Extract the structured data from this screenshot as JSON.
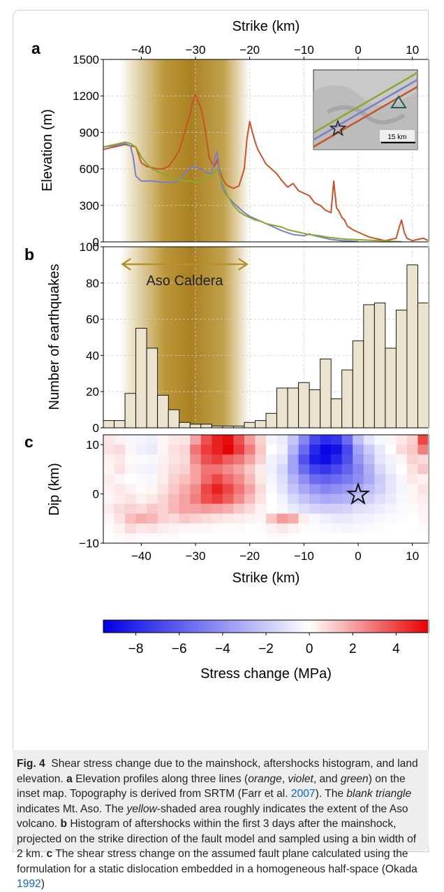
{
  "figure": {
    "panel_letters": [
      "a",
      "b",
      "c"
    ],
    "overlay_label": "Aso Caldera",
    "inset_scale_label": "15 km",
    "colorbar": {
      "label": "Stress change (MPa)",
      "ticks": [
        "−8",
        "−6",
        "−4",
        "−2",
        "0",
        "2",
        "4"
      ],
      "tick_values": [
        -8,
        -6,
        -4,
        -2,
        0,
        2,
        4
      ],
      "range": [
        -9.5,
        5.5
      ],
      "colors": {
        "negative": "#0000e6",
        "zero": "#ffffff",
        "positive": "#e60000"
      }
    },
    "colors": {
      "orange": "#c8532a",
      "violet": "#7b7fc6",
      "green": "#8aa82f",
      "caldera": "#b8912e",
      "bars_fill": "#ece3cf"
    }
  },
  "caption": {
    "fig_label": "Fig. 4",
    "title": "Shear stress change due to the mainshock, aftershocks histogram, and land elevation.",
    "a_letter": "a",
    "a_text_1": "Elevation profiles along three lines (",
    "a_orange": "orange",
    "a_sep1": ", ",
    "a_violet": "violet",
    "a_sep2": ", and ",
    "a_green": "green",
    "a_text_2": ") on the inset map. Topography is derived from SRTM (Farr et al. ",
    "a_cite_year": "2007",
    "a_text_3": "). The ",
    "a_blank_triangle": "blank triangle",
    "a_text_4": " indicates Mt. Aso. The ",
    "a_yellow": "yellow",
    "a_text_5": "-shaded area roughly indicates the extent of the Aso volcano.",
    "b_letter": "b",
    "b_text": "Histogram of aftershocks within the first 3 days after the mainshock, projected on the strike direction of the fault model and sampled using a bin width of 2 km.",
    "c_letter": "c",
    "c_text_1": "The shear stress change on the assumed fault plane calculated using the formulation for a static dislocation embedded in a homogeneous half-space (Okada ",
    "c_cite_year": "1992",
    "c_text_2": ")"
  },
  "chart_data": [
    {
      "type": "line",
      "panel": "a",
      "xlabel": "Strike (km)",
      "ylabel": "Elevation (m)",
      "xlim": [
        -47,
        13
      ],
      "ylim": [
        0,
        1500
      ],
      "xticks": [
        -40,
        -30,
        -20,
        -10,
        0,
        10
      ],
      "yticks": [
        0,
        300,
        600,
        900,
        1200,
        1500
      ],
      "shaded_region": [
        -44,
        -20
      ],
      "grid": true,
      "series": [
        {
          "color": "orange",
          "x": [
            -47,
            -45,
            -44,
            -43,
            -42,
            -41,
            -40,
            -39,
            -38,
            -37,
            -36,
            -35,
            -34,
            -33,
            -32,
            -31,
            -30.5,
            -30,
            -29.5,
            -29,
            -28.5,
            -28,
            -27.5,
            -27,
            -26.5,
            -26,
            -25.5,
            -25,
            -24.5,
            -24,
            -23,
            -22,
            -21,
            -20.5,
            -20,
            -19.5,
            -19,
            -18.5,
            -18,
            -17.5,
            -17,
            -16,
            -15,
            -14,
            -13,
            -12,
            -11,
            -10,
            -9,
            -8,
            -7,
            -6,
            -5,
            -4.5,
            -4,
            -3.5,
            -3,
            -2.5,
            -2,
            -1,
            0,
            1,
            2,
            3,
            4,
            5,
            6,
            7,
            7.5,
            8,
            8.5,
            9,
            10,
            11,
            12,
            13
          ],
          "y": [
            760,
            780,
            790,
            800,
            790,
            780,
            650,
            620,
            610,
            600,
            600,
            620,
            680,
            750,
            900,
            1050,
            1150,
            1210,
            1150,
            1100,
            1000,
            850,
            700,
            650,
            620,
            680,
            580,
            520,
            480,
            460,
            440,
            460,
            600,
            850,
            990,
            900,
            820,
            760,
            720,
            680,
            640,
            600,
            560,
            500,
            450,
            480,
            420,
            400,
            380,
            320,
            300,
            260,
            240,
            500,
            280,
            250,
            200,
            180,
            130,
            100,
            80,
            60,
            40,
            30,
            20,
            10,
            20,
            30,
            110,
            180,
            80,
            30,
            10,
            20,
            30,
            10
          ]
        },
        {
          "color": "violet",
          "x": [
            -47,
            -45,
            -44,
            -43,
            -42,
            -41.5,
            -41,
            -40,
            -38,
            -36,
            -34,
            -33,
            -32,
            -31,
            -30,
            -29,
            -28,
            -27,
            -26.5,
            -26,
            -25.5,
            -25,
            -24.5,
            -24,
            -23,
            -22,
            -21,
            -20,
            -19,
            -18,
            -17,
            -16,
            -15,
            -14,
            -13,
            -12,
            -11,
            -10,
            -9,
            -8,
            -7,
            -6,
            -5,
            -4,
            -3,
            -2,
            -1,
            0
          ],
          "y": [
            780,
            790,
            800,
            810,
            790,
            700,
            540,
            500,
            500,
            490,
            490,
            510,
            560,
            610,
            620,
            600,
            570,
            560,
            680,
            740,
            560,
            440,
            400,
            370,
            320,
            280,
            240,
            210,
            190,
            170,
            150,
            130,
            110,
            90,
            75,
            60,
            55,
            50,
            65,
            50,
            40,
            30,
            20,
            15,
            10,
            8,
            5,
            3
          ]
        },
        {
          "color": "green",
          "x": [
            -47,
            -45,
            -44,
            -43,
            -42,
            -41,
            -40,
            -39,
            -38,
            -37,
            -36,
            -35,
            -34,
            -33,
            -32,
            -31,
            -30,
            -29,
            -28,
            -27,
            -26,
            -25,
            -24,
            -23,
            -22,
            -21,
            -20,
            -19,
            -18,
            -17,
            -16,
            -15,
            -14,
            -13,
            -12,
            -11,
            -10,
            -9,
            -8,
            -7,
            -6,
            -5,
            -4,
            -3,
            -2,
            -1,
            0,
            1,
            2,
            3,
            4,
            5,
            6,
            7,
            8
          ],
          "y": [
            780,
            800,
            810,
            820,
            810,
            780,
            700,
            640,
            600,
            580,
            560,
            540,
            520,
            510,
            500,
            500,
            490,
            490,
            510,
            550,
            600,
            480,
            370,
            300,
            250,
            220,
            200,
            180,
            170,
            150,
            140,
            130,
            120,
            100,
            90,
            80,
            70,
            60,
            55,
            50,
            40,
            35,
            30,
            25,
            22,
            20,
            18,
            16,
            14,
            12,
            10,
            8,
            5,
            3,
            2
          ]
        }
      ]
    },
    {
      "type": "bar",
      "panel": "b",
      "ylabel": "Number of earthquakes",
      "xlim": [
        -47,
        13
      ],
      "ylim": [
        0,
        100
      ],
      "yticks": [
        0,
        20,
        40,
        60,
        80,
        100
      ],
      "bin_width_km": 2,
      "bin_starts": [
        -47,
        -45,
        -43,
        -41,
        -39,
        -37,
        -35,
        -33,
        -31,
        -29,
        -27,
        -25,
        -23,
        -21,
        -19,
        -17,
        -15,
        -13,
        -11,
        -9,
        -7,
        -5,
        -3,
        -1,
        1,
        3,
        5,
        7,
        9,
        11
      ],
      "values": [
        4,
        4,
        19,
        55,
        44,
        18,
        10,
        3,
        2,
        2,
        1,
        1,
        1,
        3,
        4,
        8,
        22,
        22,
        25,
        21,
        38,
        16,
        32,
        48,
        68,
        69,
        44,
        65,
        90,
        69
      ]
    },
    {
      "type": "heatmap",
      "panel": "c",
      "xlabel": "Strike (km)",
      "ylabel": "Dip (km)",
      "xlim": [
        -47,
        13
      ],
      "ylim": [
        -10,
        12
      ],
      "xticks": [
        -40,
        -30,
        -20,
        -10,
        0,
        10
      ],
      "yticks": [
        -10,
        0,
        10
      ],
      "cell_width_km": 2,
      "cell_height_km": 2,
      "x_start": -47,
      "y_start": -10,
      "colorbar_range": [
        -9.5,
        5.5
      ],
      "epicenter": [
        0,
        0
      ],
      "rows_top_to_bottom": [
        [
          0.5,
          0.3,
          -0.3,
          -0.4,
          -0.6,
          0.2,
          0.5,
          0.6,
          2.0,
          3.8,
          4.8,
          5.2,
          3.8,
          2.2,
          1.0,
          -0.4,
          -0.8,
          -2.2,
          -4.5,
          -6.8,
          -7.8,
          -7.5,
          -5.5,
          -2.5,
          -1.0,
          -0.3,
          0.2,
          0.5,
          1.0,
          4.0
        ],
        [
          0.6,
          0.8,
          0.2,
          -0.6,
          -0.8,
          0.2,
          0.7,
          0.9,
          3.0,
          4.2,
          4.8,
          5.4,
          4.2,
          2.8,
          1.2,
          0.0,
          -0.6,
          -2.8,
          -5.5,
          -8.0,
          -9.2,
          -8.8,
          -6.8,
          -3.5,
          -2.0,
          -0.8,
          0.0,
          0.8,
          1.2,
          2.8
        ],
        [
          0.3,
          0.5,
          0.1,
          -0.2,
          -0.3,
          0.3,
          0.6,
          0.8,
          2.5,
          3.8,
          4.2,
          3.5,
          3.0,
          2.0,
          1.0,
          -0.5,
          -1.0,
          -3.5,
          -6.5,
          -8.5,
          -9.0,
          -8.0,
          -6.5,
          -4.0,
          -2.5,
          -1.0,
          -0.5,
          0.2,
          1.0,
          0.8
        ],
        [
          0.2,
          0.6,
          0.2,
          -0.4,
          -0.5,
          0.4,
          0.8,
          1.0,
          2.0,
          3.0,
          3.0,
          2.5,
          2.0,
          1.2,
          0.4,
          -0.6,
          -1.5,
          -3.5,
          -5.5,
          -7.0,
          -7.5,
          -6.8,
          -5.8,
          -4.5,
          -3.0,
          -1.5,
          -0.6,
          0.0,
          0.6,
          1.2
        ],
        [
          0.4,
          0.2,
          0.0,
          -0.2,
          -0.3,
          0.4,
          1.0,
          1.4,
          2.0,
          3.2,
          4.0,
          3.2,
          2.5,
          1.5,
          0.5,
          -0.4,
          -1.2,
          -2.8,
          -4.2,
          -5.5,
          -5.8,
          -5.5,
          -5.0,
          -4.2,
          -3.2,
          -2.0,
          -1.0,
          -0.3,
          0.5,
          0.3
        ],
        [
          0.3,
          0.5,
          0.3,
          0.1,
          0.2,
          0.6,
          1.2,
          1.8,
          2.5,
          4.0,
          4.8,
          4.0,
          3.0,
          2.0,
          0.8,
          -0.2,
          -1.0,
          -2.2,
          -3.2,
          -4.0,
          -4.5,
          -4.2,
          -3.8,
          -3.2,
          -2.5,
          -1.8,
          -1.0,
          -0.4,
          0.2,
          0.6
        ],
        [
          0.2,
          0.4,
          0.6,
          0.3,
          0.5,
          0.9,
          1.5,
          2.0,
          2.8,
          3.8,
          4.2,
          3.5,
          2.5,
          1.5,
          0.6,
          0.0,
          -0.5,
          -1.5,
          -2.2,
          -2.8,
          -3.2,
          -3.0,
          -2.8,
          -2.2,
          -1.8,
          -1.2,
          -0.8,
          -0.3,
          0.2,
          0.4
        ],
        [
          0.4,
          0.8,
          1.0,
          0.8,
          1.2,
          1.0,
          1.6,
          2.0,
          2.0,
          2.2,
          2.0,
          1.8,
          1.2,
          0.8,
          0.3,
          0.0,
          -0.3,
          -0.8,
          -1.2,
          -1.6,
          -1.8,
          -1.8,
          -1.6,
          -1.2,
          -1.0,
          -0.7,
          -0.4,
          -0.2,
          0.1,
          0.3
        ],
        [
          0.2,
          0.6,
          1.4,
          1.8,
          1.6,
          1.0,
          0.8,
          1.2,
          1.0,
          0.8,
          0.6,
          0.5,
          0.4,
          0.3,
          0.2,
          1.2,
          2.2,
          1.8,
          0.4,
          -0.3,
          -0.6,
          -0.8,
          -0.8,
          -0.6,
          -0.5,
          -0.3,
          -0.2,
          -0.1,
          0.0,
          0.2
        ],
        [
          0.1,
          0.3,
          0.8,
          0.5,
          0.6,
          0.4,
          0.3,
          0.2,
          0.2,
          0.2,
          0.1,
          0.1,
          0.1,
          0.0,
          0.1,
          0.3,
          0.5,
          0.3,
          0.1,
          -0.1,
          -0.2,
          -0.3,
          -0.4,
          -0.3,
          -0.2,
          -0.1,
          0.0,
          0.0,
          0.0,
          0.1
        ],
        [
          0.0,
          0.1,
          0.2,
          0.1,
          0.1,
          0.1,
          0.1,
          0.0,
          0.0,
          0.0,
          0.0,
          0.0,
          0.0,
          0.0,
          0.0,
          0.1,
          0.1,
          0.0,
          0.0,
          0.0,
          0.0,
          0.0,
          0.0,
          0.0,
          0.0,
          0.0,
          0.0,
          0.0,
          0.0,
          0.0
        ]
      ]
    }
  ]
}
